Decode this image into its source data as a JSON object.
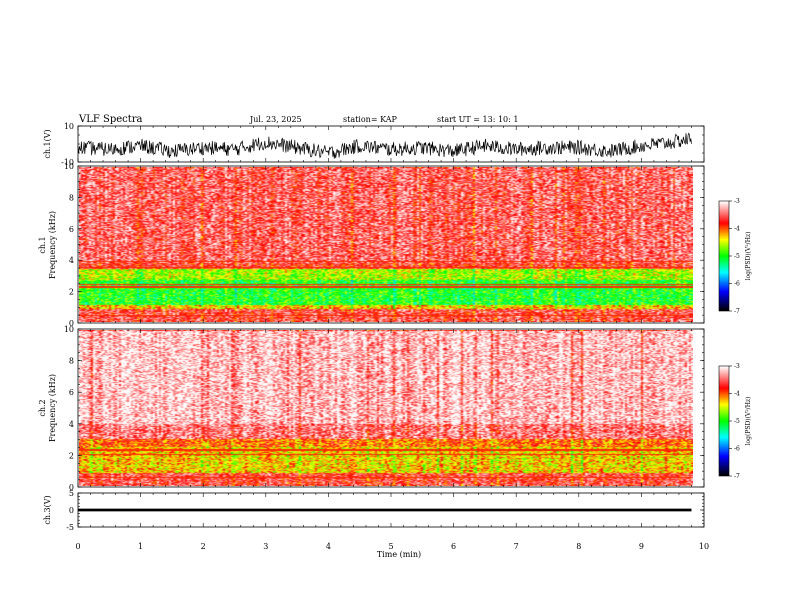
{
  "header": {
    "title": "VLF Spectra",
    "date": "Jul. 23, 2025",
    "station": "station= KAP",
    "start": "start UT =  13: 10: 1"
  },
  "chart_data": [
    {
      "type": "line",
      "panel": "ch1-waveform",
      "ylabel": "ch.1(V)",
      "ylim": [
        -10,
        10
      ],
      "yticks": [
        "10",
        "-10"
      ],
      "x": [
        0,
        0.5,
        1,
        1.5,
        2,
        2.5,
        3,
        3.5,
        4,
        4.5,
        5,
        5.5,
        6,
        6.5,
        7,
        7.5,
        8,
        8.5,
        9,
        9.5,
        9.8
      ],
      "y": [
        -2,
        -3,
        -1,
        -4,
        -2,
        -3,
        1,
        -2,
        -5,
        -1,
        -3,
        -2,
        -4,
        -1,
        -3,
        -2,
        -2,
        -4,
        -1,
        1,
        3
      ]
    },
    {
      "type": "heatmap",
      "panel": "ch1-spectrogram",
      "ylabel": "ch.1\nFrequency (kHz)",
      "ylim": [
        0,
        10
      ],
      "yticks": [
        "10",
        "8",
        "6",
        "4",
        "2",
        "0"
      ],
      "xlim": [
        0,
        9.8
      ],
      "colorbar": {
        "label": "log(PSD)(V²/Hz)",
        "ticks": [
          "-3",
          "-4",
          "-5",
          "-6",
          "-7"
        ],
        "range": [
          -7,
          -3
        ]
      },
      "bands_khz": [
        {
          "f0": 3.8,
          "f1": 10.0,
          "level": -3.5
        },
        {
          "f0": 3.4,
          "f1": 3.8,
          "level": -3.7
        },
        {
          "f0": 2.7,
          "f1": 3.4,
          "level": -4.6
        },
        {
          "f0": 1.1,
          "f1": 2.7,
          "level": -5.0
        },
        {
          "f0": 0.8,
          "f1": 1.1,
          "level": -4.3
        },
        {
          "f0": 0.0,
          "f1": 0.8,
          "level": -3.6
        }
      ],
      "lines_khz": [
        3.9,
        3.5,
        2.4,
        2.25,
        0.4
      ]
    },
    {
      "type": "heatmap",
      "panel": "ch2-spectrogram",
      "ylabel": "ch.2\nFrequency (kHz)",
      "ylim": [
        0,
        10
      ],
      "yticks": [
        "10",
        "8",
        "6",
        "4",
        "2",
        "0"
      ],
      "xlim": [
        0,
        9.8
      ],
      "colorbar": {
        "label": "log(PSD)(V²/Hz)",
        "ticks": [
          "-3",
          "-4",
          "-5",
          "-6",
          "-7"
        ],
        "range": [
          -7,
          -3
        ]
      },
      "bands_khz": [
        {
          "f0": 4.0,
          "f1": 10.0,
          "level": -3.15
        },
        {
          "f0": 3.0,
          "f1": 4.0,
          "level": -3.4
        },
        {
          "f0": 2.5,
          "f1": 3.0,
          "level": -4.0
        },
        {
          "f0": 0.8,
          "f1": 2.5,
          "level": -4.3
        },
        {
          "f0": 0.0,
          "f1": 0.8,
          "level": -3.6
        }
      ],
      "lines_khz": [
        2.3,
        2.0,
        0.5
      ]
    },
    {
      "type": "line",
      "panel": "ch3-waveform",
      "ylabel": "ch.3(V)",
      "ylim": [
        -5,
        5
      ],
      "yticks": [
        "5",
        "0",
        "-5"
      ],
      "x": [
        0,
        9.8
      ],
      "y": [
        0,
        0
      ],
      "amplitude": 0.4
    }
  ],
  "xaxis": {
    "label": "Time (min)",
    "ticks": [
      "0",
      "1",
      "2",
      "3",
      "4",
      "5",
      "6",
      "7",
      "8",
      "9",
      "10"
    ],
    "range": [
      0,
      10
    ]
  },
  "colors": {
    "trace": "#000000",
    "cmap": [
      "#000000",
      "#0000ff",
      "#00ffff",
      "#00ff00",
      "#ffff00",
      "#ff0000",
      "#ffffff"
    ]
  }
}
